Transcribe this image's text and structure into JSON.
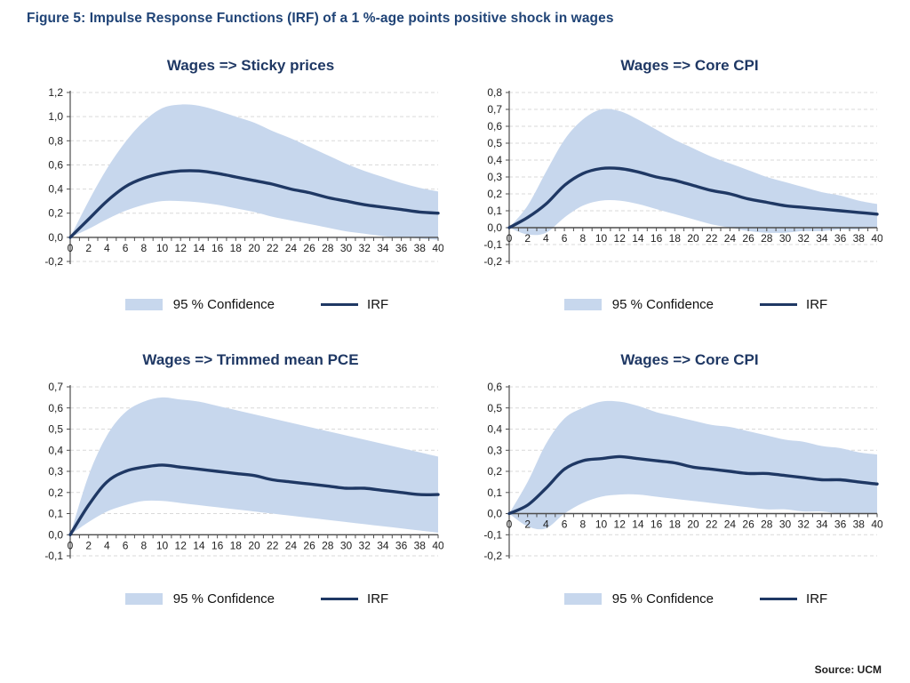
{
  "page": {
    "figure_title": "Figure 5: Impulse Response Functions (IRF) of a 1 %-age points positive shock in wages",
    "source": "Source: UCM"
  },
  "colors": {
    "band": "#c7d7ed",
    "irf_line": "#1f3864",
    "figure_title_text": "#1f4376",
    "panel_title_text": "#1f3864",
    "grid": "#d9d9d9",
    "axis": "#4d4d4d",
    "tick_text": "#1d1d1d"
  },
  "chart_data": [
    {
      "type": "area",
      "title": "Wages => Sticky prices",
      "xlabel": "",
      "ylabel": "",
      "grid": true,
      "legend_position": "bottom",
      "legend_entries": [
        "95 % Confidence",
        "IRF"
      ],
      "ylim": [
        -0.2,
        1.2
      ],
      "ytick_step": 0.2,
      "ytick_labels": [
        "1,2",
        "1,0",
        "0,8",
        "0,6",
        "0,4",
        "0,2",
        "0,0",
        "-0,2"
      ],
      "xlim": [
        0,
        40
      ],
      "x": [
        0,
        2,
        4,
        6,
        8,
        10,
        12,
        14,
        16,
        18,
        20,
        22,
        24,
        26,
        28,
        30,
        32,
        34,
        36,
        38,
        40
      ],
      "series": [
        {
          "name": "95 % Confidence upper",
          "values": [
            0.0,
            0.3,
            0.57,
            0.79,
            0.96,
            1.07,
            1.1,
            1.09,
            1.05,
            1.0,
            0.95,
            0.88,
            0.82,
            0.75,
            0.68,
            0.61,
            0.55,
            0.5,
            0.45,
            0.41,
            0.38
          ]
        },
        {
          "name": "95 % Confidence lower",
          "values": [
            0.0,
            0.07,
            0.15,
            0.22,
            0.27,
            0.3,
            0.3,
            0.29,
            0.27,
            0.24,
            0.21,
            0.17,
            0.14,
            0.11,
            0.08,
            0.05,
            0.03,
            0.01,
            0.0,
            -0.01,
            -0.02
          ]
        },
        {
          "name": "IRF",
          "values": [
            0.0,
            0.15,
            0.3,
            0.42,
            0.49,
            0.53,
            0.55,
            0.55,
            0.53,
            0.5,
            0.47,
            0.44,
            0.4,
            0.37,
            0.33,
            0.3,
            0.27,
            0.25,
            0.23,
            0.21,
            0.2
          ]
        }
      ]
    },
    {
      "type": "area",
      "title": "Wages => Core CPI",
      "xlabel": "",
      "ylabel": "",
      "grid": true,
      "legend_position": "bottom",
      "legend_entries": [
        "95 % Confidence",
        "IRF"
      ],
      "ylim": [
        -0.2,
        0.8
      ],
      "ytick_step": 0.1,
      "ytick_labels": [
        "0,8",
        "0,7",
        "0,6",
        "0,5",
        "0,4",
        "0,3",
        "0,2",
        "0,1",
        "0,0",
        "-0,1",
        "-0,2"
      ],
      "xlim": [
        0,
        40
      ],
      "x": [
        0,
        2,
        4,
        6,
        8,
        10,
        12,
        14,
        16,
        18,
        20,
        22,
        24,
        26,
        28,
        30,
        32,
        34,
        36,
        38,
        40
      ],
      "series": [
        {
          "name": "95 % Confidence upper",
          "values": [
            0.0,
            0.13,
            0.33,
            0.52,
            0.64,
            0.7,
            0.69,
            0.64,
            0.58,
            0.52,
            0.47,
            0.42,
            0.38,
            0.34,
            0.3,
            0.27,
            0.24,
            0.21,
            0.19,
            0.16,
            0.14
          ]
        },
        {
          "name": "95 % Confidence lower",
          "values": [
            0.0,
            -0.04,
            -0.03,
            0.06,
            0.13,
            0.16,
            0.16,
            0.14,
            0.11,
            0.08,
            0.05,
            0.02,
            0.0,
            -0.02,
            -0.03,
            -0.03,
            -0.02,
            -0.02,
            -0.01,
            -0.01,
            0.0
          ]
        },
        {
          "name": "IRF",
          "values": [
            0.0,
            0.06,
            0.14,
            0.25,
            0.32,
            0.35,
            0.35,
            0.33,
            0.3,
            0.28,
            0.25,
            0.22,
            0.2,
            0.17,
            0.15,
            0.13,
            0.12,
            0.11,
            0.1,
            0.09,
            0.08
          ]
        }
      ]
    },
    {
      "type": "area",
      "title": "Wages => Trimmed mean PCE",
      "xlabel": "",
      "ylabel": "",
      "grid": true,
      "legend_position": "bottom",
      "legend_entries": [
        "95 % Confidence",
        "IRF"
      ],
      "ylim": [
        -0.1,
        0.7
      ],
      "ytick_step": 0.1,
      "ytick_labels": [
        "0,7",
        "0,6",
        "0,5",
        "0,4",
        "0,3",
        "0,2",
        "0,1",
        "0,0",
        "-0,1"
      ],
      "xlim": [
        0,
        40
      ],
      "x": [
        0,
        2,
        4,
        6,
        8,
        10,
        12,
        14,
        16,
        18,
        20,
        22,
        24,
        26,
        28,
        30,
        32,
        34,
        36,
        38,
        40
      ],
      "series": [
        {
          "name": "95 % Confidence upper",
          "values": [
            0.0,
            0.28,
            0.47,
            0.58,
            0.63,
            0.65,
            0.64,
            0.63,
            0.61,
            0.59,
            0.57,
            0.55,
            0.53,
            0.51,
            0.49,
            0.47,
            0.45,
            0.43,
            0.41,
            0.39,
            0.37
          ]
        },
        {
          "name": "95 % Confidence lower",
          "values": [
            0.0,
            0.06,
            0.11,
            0.14,
            0.16,
            0.16,
            0.15,
            0.14,
            0.13,
            0.12,
            0.11,
            0.1,
            0.09,
            0.08,
            0.07,
            0.06,
            0.05,
            0.04,
            0.03,
            0.02,
            0.01
          ]
        },
        {
          "name": "IRF",
          "values": [
            0.0,
            0.14,
            0.25,
            0.3,
            0.32,
            0.33,
            0.32,
            0.31,
            0.3,
            0.29,
            0.28,
            0.26,
            0.25,
            0.24,
            0.23,
            0.22,
            0.22,
            0.21,
            0.2,
            0.19,
            0.19
          ]
        }
      ]
    },
    {
      "type": "area",
      "title": "Wages => Core CPI",
      "xlabel": "",
      "ylabel": "",
      "grid": true,
      "legend_position": "bottom",
      "legend_entries": [
        "95 % Confidence",
        "IRF"
      ],
      "ylim": [
        -0.2,
        0.6
      ],
      "ytick_step": 0.1,
      "ytick_labels": [
        "0,6",
        "0,5",
        "0,4",
        "0,3",
        "0,2",
        "0,1",
        "0,0",
        "-0,1",
        "-0,2"
      ],
      "xlim": [
        0,
        40
      ],
      "x": [
        0,
        2,
        4,
        6,
        8,
        10,
        12,
        14,
        16,
        18,
        20,
        22,
        24,
        26,
        28,
        30,
        32,
        34,
        36,
        38,
        40
      ],
      "series": [
        {
          "name": "95 % Confidence upper",
          "values": [
            0.0,
            0.15,
            0.33,
            0.45,
            0.5,
            0.53,
            0.53,
            0.51,
            0.48,
            0.46,
            0.44,
            0.42,
            0.41,
            0.39,
            0.37,
            0.35,
            0.34,
            0.32,
            0.31,
            0.29,
            0.28
          ]
        },
        {
          "name": "95 % Confidence lower",
          "values": [
            0.0,
            -0.06,
            -0.07,
            0.0,
            0.05,
            0.08,
            0.09,
            0.09,
            0.08,
            0.07,
            0.06,
            0.05,
            0.04,
            0.03,
            0.02,
            0.02,
            0.01,
            0.01,
            0.0,
            0.0,
            0.0
          ]
        },
        {
          "name": "IRF",
          "values": [
            0.0,
            0.04,
            0.12,
            0.21,
            0.25,
            0.26,
            0.27,
            0.26,
            0.25,
            0.24,
            0.22,
            0.21,
            0.2,
            0.19,
            0.19,
            0.18,
            0.17,
            0.16,
            0.16,
            0.15,
            0.14
          ]
        }
      ]
    }
  ]
}
